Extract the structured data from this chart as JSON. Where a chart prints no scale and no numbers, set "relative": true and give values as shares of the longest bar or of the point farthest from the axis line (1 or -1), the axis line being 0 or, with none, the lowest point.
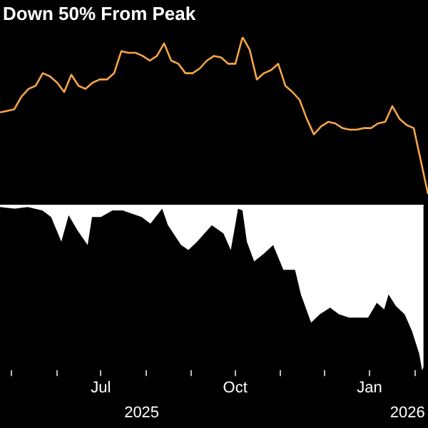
{
  "chart_data": [
    {
      "type": "line",
      "title": "Down 50% From Peak",
      "relative": true,
      "tick_labels": false,
      "categories": [
        null,
        null,
        null,
        null,
        null,
        null,
        null,
        null,
        null,
        null,
        null,
        null,
        null,
        null,
        null,
        null,
        null,
        null,
        null,
        null,
        null,
        null,
        null,
        null,
        null,
        null,
        null,
        null,
        null,
        null,
        null,
        null,
        null,
        null,
        null,
        null,
        null,
        null,
        null,
        null,
        null,
        null,
        null,
        null,
        null,
        null,
        null,
        null,
        null,
        null,
        null,
        null,
        null,
        null,
        null,
        null,
        null,
        null,
        null,
        null,
        null
      ],
      "series": [
        {
          "color": "#f5a54a",
          "values": [
            0.52,
            0.53,
            0.54,
            0.62,
            0.67,
            0.69,
            0.77,
            0.75,
            0.71,
            0.65,
            0.76,
            0.69,
            0.67,
            0.71,
            0.73,
            0.73,
            0.77,
            0.91,
            0.9,
            0.9,
            0.88,
            0.85,
            0.88,
            0.96,
            0.85,
            0.83,
            0.77,
            0.77,
            0.8,
            0.85,
            0.88,
            0.87,
            0.83,
            0.83,
            1,
            0.92,
            0.73,
            0.77,
            0.79,
            0.83,
            0.69,
            0.65,
            0.6,
            0.48,
            0.38,
            0.43,
            0.46,
            0.45,
            0.42,
            0.41,
            0.41,
            0.42,
            0.42,
            0.45,
            0.46,
            0.56,
            0.48,
            0.44,
            0.42,
            0.21,
            0
          ]
        }
      ]
    },
    {
      "type": "area",
      "relative": true,
      "tick_labels": "x",
      "xlim": [
        "2025-04-23",
        "2026-02-07"
      ],
      "xticks": [
        {
          "value": "2025-05-01",
          "label": null
        },
        {
          "value": "2025-06-01",
          "label": null
        },
        {
          "value": "2025-07-01",
          "label": "Jul"
        },
        {
          "value": "2025-08-01",
          "label": null
        },
        {
          "value": "2025-09-01",
          "label": null
        },
        {
          "value": "2025-10-01",
          "label": "Oct"
        },
        {
          "value": "2025-11-01",
          "label": null
        },
        {
          "value": "2025-12-01",
          "label": null
        },
        {
          "value": "2026-01-01",
          "label": "Jan"
        },
        {
          "value": "2026-02-01",
          "label": null
        }
      ],
      "x2lim": [
        "2025-04-23",
        "2026-02-07"
      ],
      "x2ticks": [
        {
          "value": "2025-07-29",
          "label": "2025"
        },
        {
          "value": "2026-01-27",
          "label": "2026"
        }
      ],
      "x": [
        "2025-04-23",
        "2025-05-03",
        "2025-05-12",
        "2025-05-22",
        "2025-05-28",
        "2025-06-04",
        "2025-06-09",
        "2025-06-15",
        "2025-06-22",
        "2025-06-25",
        "2025-07-01",
        "2025-07-09",
        "2025-07-16",
        "2025-07-29",
        "2025-08-04",
        "2025-08-12",
        "2025-08-16",
        "2025-08-25",
        "2025-08-30",
        "2025-09-05",
        "2025-09-15",
        "2025-09-23",
        "2025-09-28",
        "2025-10-03",
        "2025-10-06",
        "2025-10-09",
        "2025-10-14",
        "2025-10-21",
        "2025-10-27",
        "2025-11-03",
        "2025-11-11",
        "2025-11-15",
        "2025-11-22",
        "2025-11-28",
        "2025-12-05",
        "2025-12-11",
        "2025-12-18",
        "2025-12-31",
        "2026-01-06",
        "2026-01-11",
        "2026-01-14",
        "2026-01-19",
        "2026-01-25",
        "2026-01-30",
        "2026-02-04",
        "2026-02-06",
        "2026-02-07"
      ],
      "series": [
        {
          "color": "#ffffff",
          "values": [
            -0.01,
            -0.02,
            -0.01,
            -0.03,
            -0.07,
            -0.22,
            -0.06,
            -0.15,
            -0.24,
            -0.07,
            -0.07,
            -0.03,
            -0.03,
            -0.07,
            -0.11,
            -0.02,
            -0.12,
            -0.24,
            -0.27,
            -0.22,
            -0.12,
            -0.17,
            -0.27,
            -0.02,
            -0.03,
            -0.22,
            -0.34,
            -0.29,
            -0.24,
            -0.39,
            -0.39,
            -0.54,
            -0.71,
            -0.66,
            -0.62,
            -0.66,
            -0.68,
            -0.68,
            -0.59,
            -0.63,
            -0.54,
            -0.61,
            -0.66,
            -0.76,
            -0.9,
            -1,
            -0.98
          ]
        }
      ]
    }
  ]
}
